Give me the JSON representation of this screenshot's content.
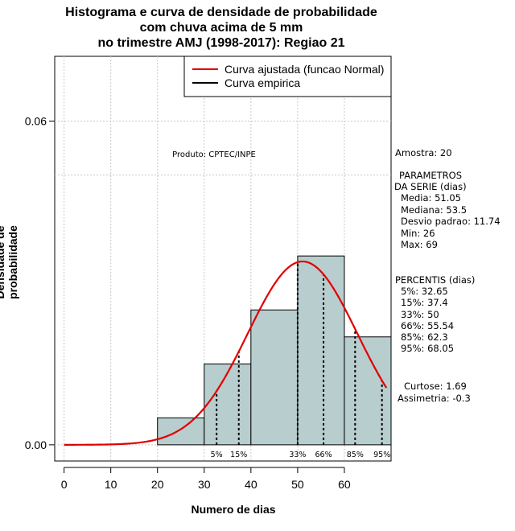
{
  "chart_data": {
    "type": "bar",
    "title": [
      "Histograma e curva de densidade de probabilidade",
      "com chuva acima de 5 mm",
      "no trimestre AMJ (1998-2017): Regiao 21"
    ],
    "xlabel": "Numero de dias",
    "ylabel": "Densidade de probabilidade",
    "xlim": [
      -2,
      70
    ],
    "ylim": [
      -0.003,
      0.072
    ],
    "x_ticks": [
      0,
      10,
      20,
      30,
      40,
      50,
      60
    ],
    "y_ticks": [
      {
        "value": 0.0,
        "label": "0.00"
      },
      {
        "value": 0.06,
        "label": "0.06"
      }
    ],
    "y_grid_extra": 0.05,
    "bins": [
      {
        "from": 20,
        "to": 30,
        "density": 0.005
      },
      {
        "from": 30,
        "to": 40,
        "density": 0.015
      },
      {
        "from": 40,
        "to": 50,
        "density": 0.025
      },
      {
        "from": 50,
        "to": 60,
        "density": 0.035
      },
      {
        "from": 60,
        "to": 70,
        "density": 0.02
      }
    ],
    "normal_curve": {
      "mean": 51.05,
      "sd": 11.74,
      "x_from": 0,
      "x_to": 69,
      "color": "#e00000"
    },
    "percentile_markers": [
      {
        "label": "5%",
        "value": 32.65
      },
      {
        "label": "15%",
        "value": 37.4
      },
      {
        "label": "33%",
        "value": 50
      },
      {
        "label": "66%",
        "value": 55.54
      },
      {
        "label": "85%",
        "value": 62.3
      },
      {
        "label": "95%",
        "value": 68.05
      }
    ],
    "legend": [
      {
        "label": "Curva ajustada (funcao Normal)",
        "color": "#e00000"
      },
      {
        "label": "Curva empirica",
        "color": "#000000"
      }
    ],
    "legend_position": "top-right",
    "annotation": "Produto: CPTEC/INPE",
    "bar_color": "#b8cdcd"
  },
  "stats": {
    "amostra": "Amostra: 20",
    "param_title_1": "PARAMETROS",
    "param_title_2": "DA SERIE (dias)",
    "media": "Media: 51.05",
    "mediana": "Mediana: 53.5",
    "desvio": "Desvio padrao: 11.74",
    "min": "Min: 26",
    "max": "Max: 69",
    "percentis_title": "PERCENTIS (dias)",
    "p5": "5%: 32.65",
    "p15": "15%: 37.4",
    "p33": "33%: 50",
    "p66": "66%: 55.54",
    "p85": "85%: 62.3",
    "p95": "95%: 68.05",
    "curtose": "Curtose: 1.69",
    "assimetria": "Assimetria: -0.3"
  }
}
